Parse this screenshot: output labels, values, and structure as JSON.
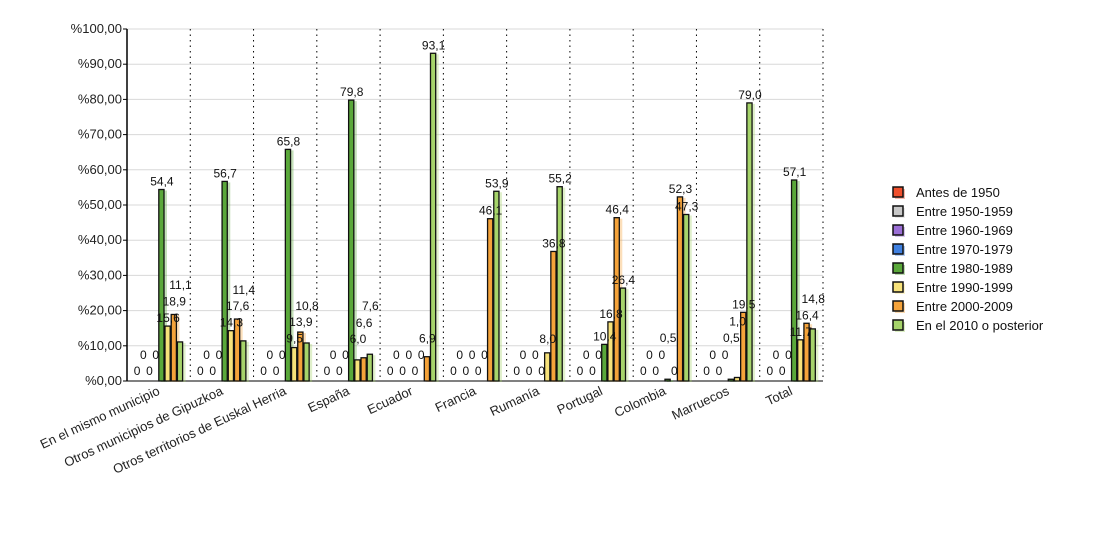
{
  "chart_data": {
    "type": "bar",
    "title": "",
    "xlabel": "",
    "ylabel": "",
    "ylim": [
      0,
      100
    ],
    "y_ticks": [
      "%0,00",
      "%10,00",
      "%20,00",
      "%30,00",
      "%40,00",
      "%50,00",
      "%60,00",
      "%70,00",
      "%80,00",
      "%90,00",
      "%100,00"
    ],
    "grid": true,
    "legend_position": "right",
    "categories": [
      "En el mismo municipio",
      "Otros municipios de Gipuzkoa",
      "Otros territorios de Euskal Herria",
      "España",
      "Ecuador",
      "Francia",
      "Rumanía",
      "Portugal",
      "Colombia",
      "Marruecos",
      "Total"
    ],
    "series": [
      {
        "name": "Antes de 1950",
        "color": "#f0502d",
        "values": [
          0,
          0,
          0,
          0,
          0,
          0,
          0,
          0,
          0,
          0,
          0
        ]
      },
      {
        "name": "Entre 1950-1959",
        "color": "#c8c8c8",
        "values": [
          0,
          0,
          0,
          0,
          0,
          0,
          0,
          0,
          0,
          0,
          0
        ]
      },
      {
        "name": "Entre 1960-1969",
        "color": "#9b6fd6",
        "values": [
          0,
          0,
          0,
          0,
          0,
          0,
          0,
          0,
          0,
          0,
          0
        ]
      },
      {
        "name": "Entre 1970-1979",
        "color": "#3f80e0",
        "values": [
          0,
          0,
          0,
          0,
          0,
          0,
          0,
          0,
          0,
          0,
          0
        ]
      },
      {
        "name": "Entre 1980-1989",
        "color": "#5aa83a",
        "values": [
          54.4,
          56.7,
          65.8,
          79.8,
          0,
          0,
          0,
          10.4,
          0.5,
          0.5,
          57.1
        ]
      },
      {
        "name": "Entre 1990-1999",
        "color": "#f7e27a",
        "values": [
          15.6,
          14.3,
          9.5,
          6.0,
          0,
          0,
          8.0,
          16.8,
          0,
          1.0,
          11.7
        ]
      },
      {
        "name": "Entre 2000-2009",
        "color": "#f5a33a",
        "values": [
          18.9,
          17.6,
          13.9,
          6.6,
          6.9,
          46.1,
          36.8,
          46.4,
          52.3,
          19.5,
          16.4
        ]
      },
      {
        "name": "En el 2010 o posterior",
        "color": "#a6d46a",
        "values": [
          11.1,
          11.4,
          10.8,
          7.6,
          93.1,
          53.9,
          55.2,
          26.4,
          47.3,
          79.0,
          14.8
        ]
      }
    ]
  }
}
